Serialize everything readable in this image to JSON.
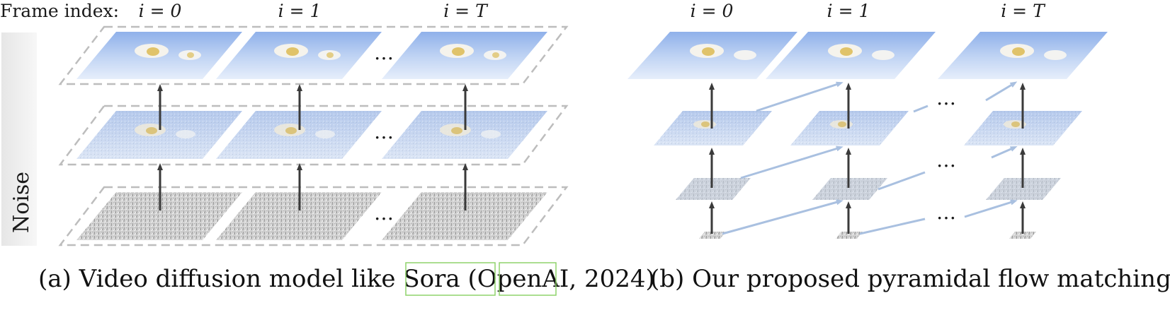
{
  "frame_index_label": "Frame index:",
  "panel_a": {
    "frame_labels": [
      "i = 0",
      "i = 1",
      "i = T"
    ],
    "side_label": "Noise",
    "ellipsis": "…",
    "caption_prefix": "(a) Video diffusion model like Sora (",
    "caption_cite_1": "OpenAI",
    "caption_sep": ", ",
    "caption_cite_2": "2024",
    "caption_suffix": ")"
  },
  "panel_b": {
    "frame_labels": [
      "i = 0",
      "i = 1",
      "i = T"
    ],
    "ellipsis": "…",
    "caption": "(b) Our proposed pyramidal flow matching"
  },
  "colors": {
    "sky_top": "#9cb9ec",
    "sky_bottom": "#dfeafa",
    "noise_gray": "#cfcfcf",
    "dashed_frame": "#bdbdbd",
    "arrow_dark": "#3a3a3a",
    "arrow_light": "#a9c0e0",
    "cite_box": "#8fd36b",
    "noise_band": "#ececec"
  }
}
